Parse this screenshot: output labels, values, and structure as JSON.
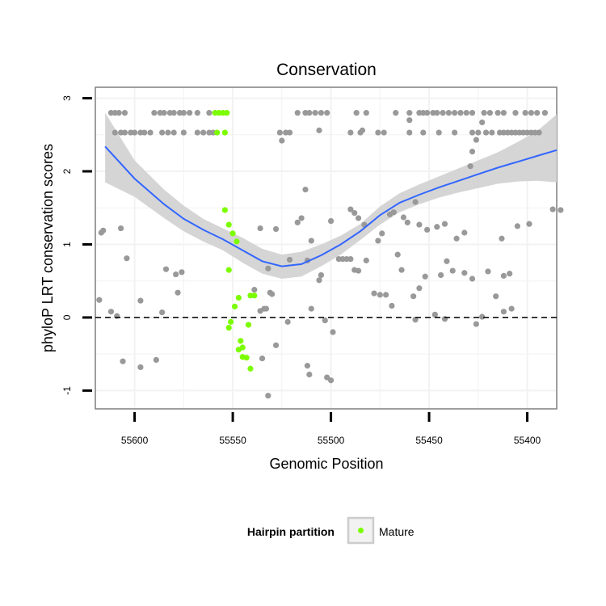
{
  "chart_data": {
    "type": "scatter",
    "title": "Conservation",
    "xlabel": "Genomic Position",
    "ylabel": "phyloP LRT conservation scores",
    "x_reversed": true,
    "xlim": [
      55385,
      55620
    ],
    "ylim": [
      -1.25,
      3.15
    ],
    "x_ticks": [
      55600,
      55550,
      55500,
      55450,
      55400
    ],
    "y_ticks": [
      -1,
      0,
      1,
      2,
      3
    ],
    "grid": true,
    "reference_line": {
      "y": 0,
      "style": "dashed"
    },
    "colors": {
      "points": "#999999",
      "mature": "#7CFC00",
      "smooth": "#3366FF",
      "ribbon": "#d3d3d3",
      "panel_border": "#7f7f7f",
      "grid": "#f2f2f2"
    },
    "legend": {
      "title": "Hairpin partition",
      "position": "bottom",
      "entries": [
        {
          "label": "Mature",
          "color": "#7CFC00"
        }
      ]
    },
    "series": [
      {
        "name": "Mature",
        "points": [
          [
            55559,
            2.8
          ],
          [
            55557,
            2.8
          ],
          [
            55555,
            2.8
          ],
          [
            55553,
            2.8
          ],
          [
            55558,
            2.53
          ],
          [
            55554,
            2.53
          ],
          [
            55554,
            1.47
          ],
          [
            55552,
            1.27
          ],
          [
            55550,
            1.15
          ],
          [
            55548,
            1.04
          ],
          [
            55552,
            0.65
          ],
          [
            55547,
            0.27
          ],
          [
            55549,
            0.15
          ],
          [
            55551,
            -0.06
          ],
          [
            55552,
            -0.14
          ],
          [
            55546,
            -0.32
          ],
          [
            55547,
            -0.44
          ],
          [
            55545,
            -0.41
          ],
          [
            55545,
            -0.54
          ],
          [
            55543,
            -0.55
          ],
          [
            55542,
            -0.1
          ],
          [
            55541,
            -0.7
          ],
          [
            55541,
            0.3
          ],
          [
            55539,
            0.3
          ]
        ]
      },
      {
        "name": "",
        "points": [
          [
            55612,
            2.8
          ],
          [
            55610,
            2.8
          ],
          [
            55608,
            2.8
          ],
          [
            55605,
            2.8
          ],
          [
            55590,
            2.8
          ],
          [
            55587,
            2.8
          ],
          [
            55585,
            2.8
          ],
          [
            55582,
            2.8
          ],
          [
            55580,
            2.8
          ],
          [
            55577,
            2.8
          ],
          [
            55575,
            2.8
          ],
          [
            55572,
            2.8
          ],
          [
            55568,
            2.8
          ],
          [
            55562,
            2.8
          ],
          [
            55517,
            2.8
          ],
          [
            55513,
            2.8
          ],
          [
            55511,
            2.8
          ],
          [
            55508,
            2.8
          ],
          [
            55505,
            2.8
          ],
          [
            55502,
            2.8
          ],
          [
            55487,
            2.8
          ],
          [
            55482,
            2.8
          ],
          [
            55467,
            2.8
          ],
          [
            55460,
            2.8
          ],
          [
            55455,
            2.8
          ],
          [
            55453,
            2.8
          ],
          [
            55451,
            2.8
          ],
          [
            55448,
            2.8
          ],
          [
            55446,
            2.8
          ],
          [
            55443,
            2.8
          ],
          [
            55440,
            2.8
          ],
          [
            55437,
            2.8
          ],
          [
            55434,
            2.8
          ],
          [
            55431,
            2.8
          ],
          [
            55428,
            2.8
          ],
          [
            55422,
            2.8
          ],
          [
            55419,
            2.8
          ],
          [
            55415,
            2.8
          ],
          [
            55412,
            2.8
          ],
          [
            55406,
            2.8
          ],
          [
            55401,
            2.8
          ],
          [
            55398,
            2.8
          ],
          [
            55395,
            2.8
          ],
          [
            55391,
            2.8
          ],
          [
            55610,
            2.53
          ],
          [
            55607,
            2.53
          ],
          [
            55605,
            2.53
          ],
          [
            55602,
            2.53
          ],
          [
            55600,
            2.53
          ],
          [
            55597,
            2.53
          ],
          [
            55595,
            2.53
          ],
          [
            55592,
            2.53
          ],
          [
            55586,
            2.53
          ],
          [
            55583,
            2.53
          ],
          [
            55580,
            2.53
          ],
          [
            55575,
            2.53
          ],
          [
            55568,
            2.53
          ],
          [
            55565,
            2.53
          ],
          [
            55562,
            2.53
          ],
          [
            55560,
            2.53
          ],
          [
            55526,
            2.53
          ],
          [
            55523,
            2.53
          ],
          [
            55521,
            2.53
          ],
          [
            55490,
            2.53
          ],
          [
            55485,
            2.53
          ],
          [
            55476,
            2.53
          ],
          [
            55473,
            2.53
          ],
          [
            55460,
            2.53
          ],
          [
            55453,
            2.53
          ],
          [
            55445,
            2.53
          ],
          [
            55437,
            2.53
          ],
          [
            55428,
            2.53
          ],
          [
            55425,
            2.53
          ],
          [
            55421,
            2.53
          ],
          [
            55418,
            2.53
          ],
          [
            55414,
            2.53
          ],
          [
            55412,
            2.53
          ],
          [
            55410,
            2.53
          ],
          [
            55408,
            2.53
          ],
          [
            55406,
            2.53
          ],
          [
            55404,
            2.53
          ],
          [
            55402,
            2.53
          ],
          [
            55400,
            2.53
          ],
          [
            55398,
            2.53
          ],
          [
            55396,
            2.53
          ],
          [
            55394,
            2.53
          ],
          [
            55506,
            2.56
          ],
          [
            55484,
            2.56
          ],
          [
            55460,
            2.7
          ],
          [
            55423,
            2.67
          ],
          [
            55426,
            2.43
          ],
          [
            55428,
            2.27
          ],
          [
            55429,
            2.07
          ],
          [
            55525,
            2.42
          ],
          [
            55513,
            1.75
          ],
          [
            55517,
            1.3
          ],
          [
            55515,
            1.36
          ],
          [
            55510,
            1.05
          ],
          [
            55528,
            1.21
          ],
          [
            55500,
            1.32
          ],
          [
            55490,
            1.48
          ],
          [
            55488,
            1.43
          ],
          [
            55486,
            1.36
          ],
          [
            55483,
            1.27
          ],
          [
            55476,
            1.05
          ],
          [
            55474,
            1.15
          ],
          [
            55470,
            1.41
          ],
          [
            55468,
            1.44
          ],
          [
            55463,
            1.37
          ],
          [
            55461,
            1.3
          ],
          [
            55457,
            1.58
          ],
          [
            55455,
            1.27
          ],
          [
            55451,
            1.2
          ],
          [
            55446,
            1.24
          ],
          [
            55442,
            1.28
          ],
          [
            55436,
            1.08
          ],
          [
            55432,
            1.16
          ],
          [
            55413,
            1.08
          ],
          [
            55405,
            1.25
          ],
          [
            55399,
            1.28
          ],
          [
            55387,
            1.48
          ],
          [
            55383,
            1.47
          ],
          [
            55617,
            1.16
          ],
          [
            55616,
            1.19
          ],
          [
            55607,
            1.22
          ],
          [
            55604,
            0.81
          ],
          [
            55584,
            0.66
          ],
          [
            55579,
            0.59
          ],
          [
            55578,
            0.34
          ],
          [
            55576,
            0.62
          ],
          [
            55496,
            0.8
          ],
          [
            55494,
            0.8
          ],
          [
            55492,
            0.8
          ],
          [
            55490,
            0.8
          ],
          [
            55488,
            0.65
          ],
          [
            55486,
            0.64
          ],
          [
            55482,
            0.78
          ],
          [
            55478,
            0.33
          ],
          [
            55475,
            0.31
          ],
          [
            55472,
            0.31
          ],
          [
            55469,
            0.16
          ],
          [
            55466,
            0.86
          ],
          [
            55464,
            0.65
          ],
          [
            55458,
            0.29
          ],
          [
            55455,
            0.4
          ],
          [
            55452,
            0.56
          ],
          [
            55447,
            0.04
          ],
          [
            55444,
            0.58
          ],
          [
            55441,
            0.77
          ],
          [
            55438,
            0.64
          ],
          [
            55432,
            0.61
          ],
          [
            55428,
            0.53
          ],
          [
            55420,
            0.63
          ],
          [
            55416,
            0.29
          ],
          [
            55412,
            0.57
          ],
          [
            55409,
            0.6
          ],
          [
            55408,
            0.12
          ],
          [
            55536,
            1.22
          ],
          [
            55532,
            0.67
          ],
          [
            55531,
            0.34
          ],
          [
            55530,
            0.32
          ],
          [
            55521,
            0.79
          ],
          [
            55512,
            0.78
          ],
          [
            55510,
            0.12
          ],
          [
            55506,
            0.51
          ],
          [
            55505,
            0.58
          ],
          [
            55539,
            0.38
          ],
          [
            55536,
            0.09
          ],
          [
            55534,
            0.12
          ],
          [
            55618,
            0.24
          ],
          [
            55612,
            0.08
          ],
          [
            55609,
            0.02
          ],
          [
            55597,
            0.23
          ],
          [
            55586,
            0.07
          ],
          [
            55533,
            0.12
          ],
          [
            55522,
            -0.06
          ],
          [
            55503,
            -0.04
          ],
          [
            55499,
            -0.2
          ],
          [
            55457,
            -0.03
          ],
          [
            55442,
            -0.02
          ],
          [
            55426,
            -0.09
          ],
          [
            55423,
            0.01
          ],
          [
            55412,
            0.08
          ],
          [
            55606,
            -0.6
          ],
          [
            55597,
            -0.68
          ],
          [
            55589,
            -0.58
          ],
          [
            55535,
            -0.56
          ],
          [
            55532,
            -1.07
          ],
          [
            55528,
            -0.38
          ],
          [
            55511,
            -0.78
          ],
          [
            55512,
            -0.66
          ],
          [
            55502,
            -0.82
          ],
          [
            55500,
            -0.86
          ]
        ]
      }
    ],
    "smooth_curve": [
      [
        55615,
        2.34
      ],
      [
        55600,
        1.9
      ],
      [
        55585,
        1.55
      ],
      [
        55575,
        1.35
      ],
      [
        55565,
        1.2
      ],
      [
        55555,
        1.07
      ],
      [
        55545,
        0.92
      ],
      [
        55535,
        0.77
      ],
      [
        55525,
        0.7
      ],
      [
        55515,
        0.73
      ],
      [
        55505,
        0.85
      ],
      [
        55495,
        1.0
      ],
      [
        55485,
        1.18
      ],
      [
        55475,
        1.4
      ],
      [
        55465,
        1.57
      ],
      [
        55455,
        1.68
      ],
      [
        55445,
        1.78
      ],
      [
        55435,
        1.87
      ],
      [
        55425,
        1.96
      ],
      [
        55415,
        2.05
      ],
      [
        55405,
        2.13
      ],
      [
        55395,
        2.21
      ],
      [
        55385,
        2.29
      ]
    ],
    "ribbon_upper": [
      [
        55615,
        2.8
      ],
      [
        55600,
        2.15
      ],
      [
        55585,
        1.75
      ],
      [
        55575,
        1.53
      ],
      [
        55565,
        1.35
      ],
      [
        55555,
        1.22
      ],
      [
        55545,
        1.09
      ],
      [
        55535,
        0.94
      ],
      [
        55525,
        0.86
      ],
      [
        55515,
        0.9
      ],
      [
        55505,
        1.0
      ],
      [
        55495,
        1.12
      ],
      [
        55485,
        1.28
      ],
      [
        55475,
        1.52
      ],
      [
        55465,
        1.7
      ],
      [
        55455,
        1.82
      ],
      [
        55445,
        1.93
      ],
      [
        55435,
        2.04
      ],
      [
        55425,
        2.15
      ],
      [
        55415,
        2.26
      ],
      [
        55405,
        2.4
      ],
      [
        55395,
        2.55
      ],
      [
        55385,
        2.78
      ]
    ],
    "ribbon_lower": [
      [
        55615,
        1.85
      ],
      [
        55600,
        1.65
      ],
      [
        55585,
        1.36
      ],
      [
        55575,
        1.18
      ],
      [
        55565,
        1.04
      ],
      [
        55555,
        0.92
      ],
      [
        55545,
        0.75
      ],
      [
        55535,
        0.6
      ],
      [
        55525,
        0.53
      ],
      [
        55515,
        0.56
      ],
      [
        55505,
        0.7
      ],
      [
        55495,
        0.86
      ],
      [
        55485,
        1.06
      ],
      [
        55475,
        1.27
      ],
      [
        55465,
        1.44
      ],
      [
        55455,
        1.55
      ],
      [
        55445,
        1.64
      ],
      [
        55435,
        1.71
      ],
      [
        55425,
        1.77
      ],
      [
        55415,
        1.83
      ],
      [
        55405,
        1.86
      ],
      [
        55395,
        1.87
      ],
      [
        55385,
        1.85
      ]
    ]
  }
}
